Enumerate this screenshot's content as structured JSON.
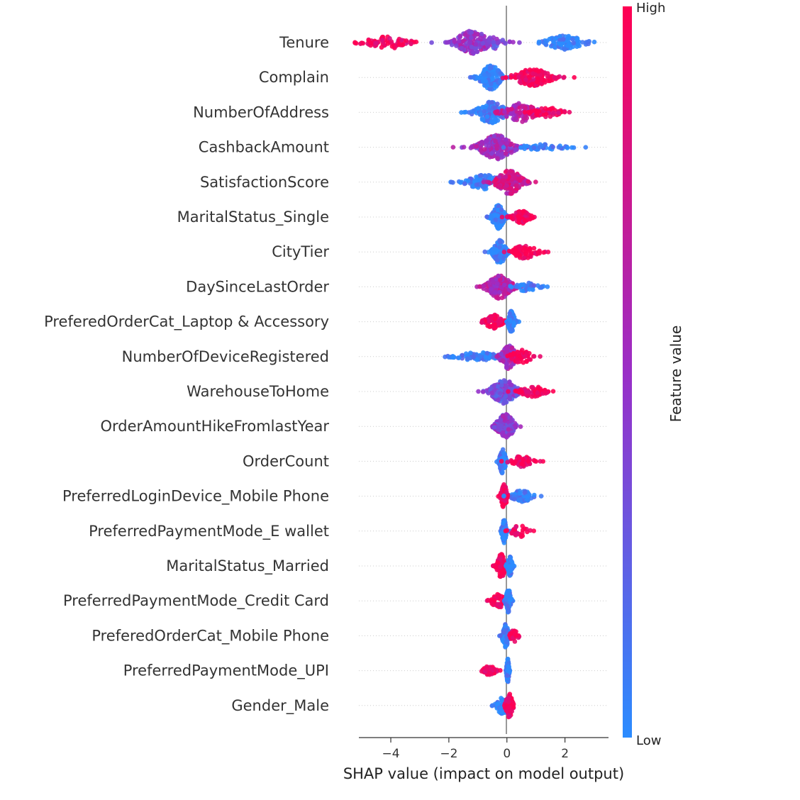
{
  "chart_data": {
    "type": "scatter",
    "subtype": "shap-beeswarm",
    "title": "",
    "xlabel": "SHAP value (impact on model output)",
    "xlim": [
      -5.1,
      3.5
    ],
    "xticks": [
      -4,
      -2,
      0,
      2
    ],
    "xtick_labels": [
      "−4",
      "−2",
      "0",
      "2"
    ],
    "colorbar": {
      "title": "Feature value",
      "high_label": "High",
      "low_label": "Low",
      "color_low": "#2b8cff",
      "color_mid": "#9a2ec7",
      "color_high": "#ff0052"
    },
    "features": [
      {
        "name": "Tenure",
        "clusters": [
          {
            "center": -4.1,
            "spread": 0.55,
            "count": 70,
            "value": 0.95,
            "width": 0.5
          },
          {
            "center": -1.2,
            "spread": 0.4,
            "count": 150,
            "value": 0.5,
            "width": 1.0
          },
          {
            "center": -0.4,
            "spread": 0.3,
            "count": 25,
            "value": 0.35,
            "width": 0.5
          },
          {
            "center": 2.0,
            "spread": 0.45,
            "count": 90,
            "value": 0.02,
            "width": 0.6
          }
        ]
      },
      {
        "name": "Complain",
        "clusters": [
          {
            "center": -0.55,
            "spread": 0.25,
            "count": 160,
            "value": 0.02,
            "width": 1.0
          },
          {
            "center": 0.9,
            "spread": 0.45,
            "count": 140,
            "value": 0.97,
            "width": 0.7
          }
        ]
      },
      {
        "name": "NumberOfAddress",
        "clusters": [
          {
            "center": -0.55,
            "spread": 0.35,
            "count": 150,
            "value": 0.08,
            "width": 0.9
          },
          {
            "center": 0.5,
            "spread": 0.4,
            "count": 110,
            "value": 0.65,
            "width": 0.8
          },
          {
            "center": 1.4,
            "spread": 0.35,
            "count": 50,
            "value": 0.95,
            "width": 0.4
          }
        ]
      },
      {
        "name": "CashbackAmount",
        "clusters": [
          {
            "center": -0.35,
            "spread": 0.4,
            "count": 190,
            "value": 0.55,
            "width": 1.0
          },
          {
            "center": 1.2,
            "spread": 0.55,
            "count": 45,
            "value": 0.05,
            "width": 0.25
          }
        ]
      },
      {
        "name": "SatisfactionScore",
        "clusters": [
          {
            "center": -0.75,
            "spread": 0.45,
            "count": 110,
            "value": 0.06,
            "width": 0.6
          },
          {
            "center": 0.1,
            "spread": 0.3,
            "count": 160,
            "value": 0.75,
            "width": 1.0
          }
        ]
      },
      {
        "name": "MaritalStatus_Single",
        "clusters": [
          {
            "center": -0.3,
            "spread": 0.15,
            "count": 150,
            "value": 0.04,
            "width": 1.0
          },
          {
            "center": 0.5,
            "spread": 0.2,
            "count": 80,
            "value": 0.97,
            "width": 0.55
          }
        ]
      },
      {
        "name": "CityTier",
        "clusters": [
          {
            "center": -0.25,
            "spread": 0.15,
            "count": 140,
            "value": 0.04,
            "width": 1.0
          },
          {
            "center": 0.6,
            "spread": 0.3,
            "count": 80,
            "value": 0.97,
            "width": 0.55
          }
        ]
      },
      {
        "name": "DaySinceLastOrder",
        "clusters": [
          {
            "center": -0.25,
            "spread": 0.28,
            "count": 150,
            "value": 0.62,
            "width": 1.0
          },
          {
            "center": 0.65,
            "spread": 0.3,
            "count": 40,
            "value": 0.08,
            "width": 0.35
          }
        ]
      },
      {
        "name": "PreferedOrderCat_Laptop & Accessory",
        "clusters": [
          {
            "center": -0.45,
            "spread": 0.2,
            "count": 80,
            "value": 0.97,
            "width": 0.6
          },
          {
            "center": 0.15,
            "spread": 0.08,
            "count": 80,
            "value": 0.03,
            "width": 0.9
          }
        ]
      },
      {
        "name": "NumberOfDeviceRegistered",
        "clusters": [
          {
            "center": -1.0,
            "spread": 0.5,
            "count": 100,
            "value": 0.05,
            "width": 0.35
          },
          {
            "center": 0.05,
            "spread": 0.18,
            "count": 90,
            "value": 0.55,
            "width": 1.0
          },
          {
            "center": 0.5,
            "spread": 0.25,
            "count": 60,
            "value": 0.97,
            "width": 0.55
          }
        ]
      },
      {
        "name": "WarehouseToHome",
        "clusters": [
          {
            "center": -0.1,
            "spread": 0.3,
            "count": 180,
            "value": 0.35,
            "width": 1.0
          },
          {
            "center": 0.9,
            "spread": 0.3,
            "count": 60,
            "value": 0.97,
            "width": 0.45
          }
        ]
      },
      {
        "name": "OrderAmountHikeFromlastYear",
        "clusters": [
          {
            "center": -0.05,
            "spread": 0.22,
            "count": 150,
            "value": 0.45,
            "width": 1.0
          }
        ]
      },
      {
        "name": "OrderCount",
        "clusters": [
          {
            "center": -0.15,
            "spread": 0.08,
            "count": 90,
            "value": 0.05,
            "width": 1.0
          },
          {
            "center": 0.5,
            "spread": 0.25,
            "count": 60,
            "value": 0.97,
            "width": 0.45
          }
        ]
      },
      {
        "name": "PreferredLoginDevice_Mobile Phone",
        "clusters": [
          {
            "center": -0.1,
            "spread": 0.07,
            "count": 90,
            "value": 0.97,
            "width": 1.0
          },
          {
            "center": 0.5,
            "spread": 0.25,
            "count": 70,
            "value": 0.05,
            "width": 0.5
          }
        ]
      },
      {
        "name": "PreferredPaymentMode_E wallet",
        "clusters": [
          {
            "center": -0.1,
            "spread": 0.05,
            "count": 100,
            "value": 0.03,
            "width": 1.0
          },
          {
            "center": 0.45,
            "spread": 0.2,
            "count": 30,
            "value": 0.97,
            "width": 0.5
          }
        ]
      },
      {
        "name": "MaritalStatus_Married",
        "clusters": [
          {
            "center": -0.2,
            "spread": 0.1,
            "count": 80,
            "value": 0.97,
            "width": 1.0
          },
          {
            "center": 0.1,
            "spread": 0.06,
            "count": 60,
            "value": 0.03,
            "width": 0.8
          }
        ]
      },
      {
        "name": "PreferredPaymentMode_Credit Card",
        "clusters": [
          {
            "center": -0.3,
            "spread": 0.18,
            "count": 50,
            "value": 0.97,
            "width": 0.6
          },
          {
            "center": 0.05,
            "spread": 0.06,
            "count": 100,
            "value": 0.03,
            "width": 1.0
          }
        ]
      },
      {
        "name": "PreferedOrderCat_Mobile Phone",
        "clusters": [
          {
            "center": -0.05,
            "spread": 0.08,
            "count": 90,
            "value": 0.03,
            "width": 1.0
          },
          {
            "center": 0.25,
            "spread": 0.1,
            "count": 30,
            "value": 0.97,
            "width": 0.5
          }
        ]
      },
      {
        "name": "PreferredPaymentMode_UPI",
        "clusters": [
          {
            "center": -0.6,
            "spread": 0.15,
            "count": 50,
            "value": 0.97,
            "width": 0.4
          },
          {
            "center": 0.03,
            "spread": 0.03,
            "count": 100,
            "value": 0.03,
            "width": 1.0
          }
        ]
      },
      {
        "name": "Gender_Male",
        "clusters": [
          {
            "center": -0.15,
            "spread": 0.15,
            "count": 60,
            "value": 0.03,
            "width": 0.7
          },
          {
            "center": 0.08,
            "spread": 0.08,
            "count": 80,
            "value": 0.97,
            "width": 1.0
          }
        ]
      }
    ]
  }
}
